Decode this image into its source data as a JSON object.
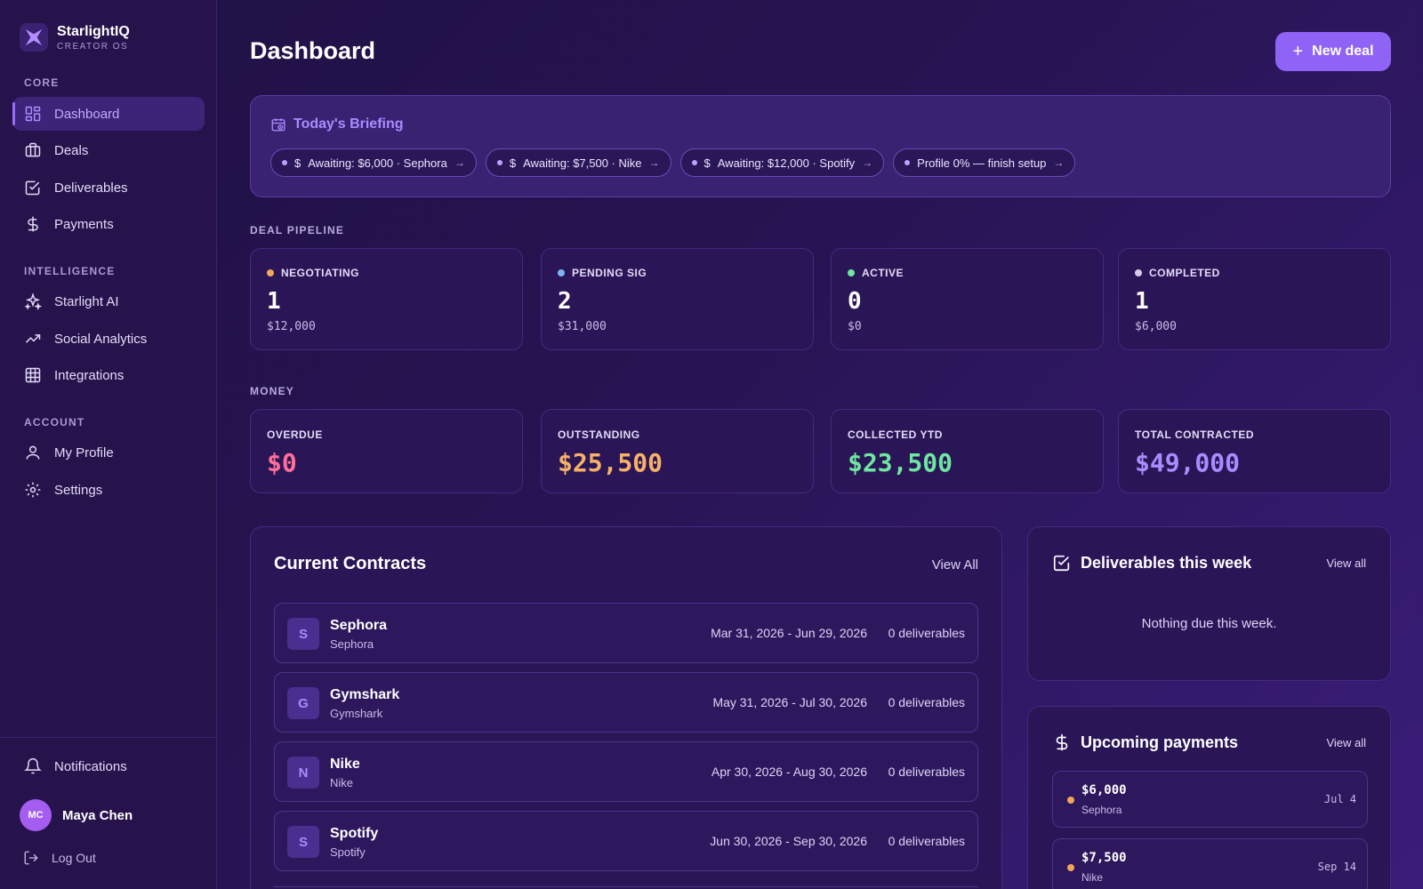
{
  "brand": {
    "name": "StarlightIQ",
    "subtitle": "CREATOR OS"
  },
  "sidebar": {
    "sections": [
      "CORE",
      "INTELLIGENCE",
      "ACCOUNT"
    ],
    "core": [
      {
        "label": "Dashboard",
        "icon": "grid-icon",
        "active": true
      },
      {
        "label": "Deals",
        "icon": "briefcase-icon"
      },
      {
        "label": "Deliverables",
        "icon": "checkbox-icon"
      },
      {
        "label": "Payments",
        "icon": "dollar-icon"
      }
    ],
    "intelligence": [
      {
        "label": "Starlight AI",
        "icon": "sparkle-icon"
      },
      {
        "label": "Social Analytics",
        "icon": "trend-icon"
      },
      {
        "label": "Integrations",
        "icon": "grid-table-icon"
      }
    ],
    "account": [
      {
        "label": "My Profile",
        "icon": "user-icon"
      },
      {
        "label": "Settings",
        "icon": "gear-icon"
      }
    ],
    "notifications": "Notifications",
    "user": {
      "initials": "MC",
      "name": "Maya Chen"
    },
    "logout": "Log Out"
  },
  "header": {
    "title": "Dashboard",
    "new_deal": "New deal"
  },
  "briefing": {
    "title": "Today's Briefing",
    "chips": [
      {
        "text": "Awaiting: $6,000 · Sephora",
        "has_dollar": true
      },
      {
        "text": "Awaiting: $7,500 · Nike",
        "has_dollar": true
      },
      {
        "text": "Awaiting: $12,000 · Spotify",
        "has_dollar": true
      },
      {
        "text": "Profile 0% — finish setup",
        "has_dollar": false
      }
    ]
  },
  "pipeline": {
    "label": "DEAL PIPELINE",
    "stages": [
      {
        "name": "NEGOTIATING",
        "count": "1",
        "amount": "$12,000",
        "color": "#f2a65a"
      },
      {
        "name": "PENDING SIG",
        "count": "2",
        "amount": "$31,000",
        "color": "#7fb3f5"
      },
      {
        "name": "ACTIVE",
        "count": "0",
        "amount": "$0",
        "color": "#6ee7a0"
      },
      {
        "name": "COMPLETED",
        "count": "1",
        "amount": "$6,000",
        "color": "#d6cce8"
      }
    ]
  },
  "money": {
    "label": "MONEY",
    "items": [
      {
        "name": "OVERDUE",
        "value": "$0",
        "color": "#ff6f9a"
      },
      {
        "name": "OUTSTANDING",
        "value": "$25,500",
        "color": "#f7b267"
      },
      {
        "name": "COLLECTED YTD",
        "value": "$23,500",
        "color": "#6ee7a0"
      },
      {
        "name": "TOTAL CONTRACTED",
        "value": "$49,000",
        "color": "#a98cff"
      }
    ]
  },
  "contracts": {
    "title": "Current Contracts",
    "view_all": "View All",
    "rows": [
      {
        "initial": "S",
        "name": "Sephora",
        "sub": "Sephora",
        "dates": "Mar 31, 2026 - Jun 29, 2026",
        "deliverables": "0 deliverables"
      },
      {
        "initial": "G",
        "name": "Gymshark",
        "sub": "Gymshark",
        "dates": "May 31, 2026 - Jul 30, 2026",
        "deliverables": "0 deliverables"
      },
      {
        "initial": "N",
        "name": "Nike",
        "sub": "Nike",
        "dates": "Apr 30, 2026 - Aug 30, 2026",
        "deliverables": "0 deliverables"
      },
      {
        "initial": "S",
        "name": "Spotify",
        "sub": "Spotify",
        "dates": "Jun 30, 2026 - Sep 30, 2026",
        "deliverables": "0 deliverables"
      }
    ]
  },
  "deliverables_week": {
    "title": "Deliverables this week",
    "view_all": "View all",
    "empty": "Nothing due this week."
  },
  "upcoming_payments": {
    "title": "Upcoming payments",
    "view_all": "View all",
    "items": [
      {
        "amount": "$6,000",
        "brand": "Sephora",
        "date": "Jul 4"
      },
      {
        "amount": "$7,500",
        "brand": "Nike",
        "date": "Sep 14"
      }
    ]
  }
}
